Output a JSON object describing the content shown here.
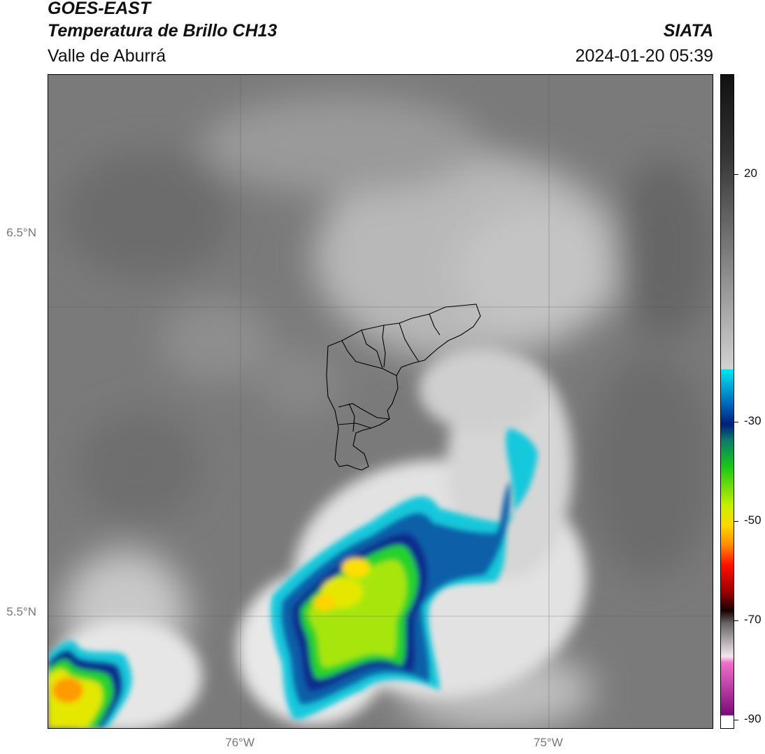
{
  "header": {
    "satellite": "GOES-EAST",
    "product": "Temperatura de Brillo CH13",
    "region": "Valle de Aburrá",
    "organization": "SIATA",
    "datetime": "2024-01-20 05:39"
  },
  "map": {
    "lat_labels": [
      "6.5°N",
      "5.5°N"
    ],
    "lon_labels": [
      "76°W",
      "75°W"
    ]
  },
  "colorbar": {
    "ticks": [
      "20",
      "-30",
      "-50",
      "-70",
      "-90"
    ]
  }
}
